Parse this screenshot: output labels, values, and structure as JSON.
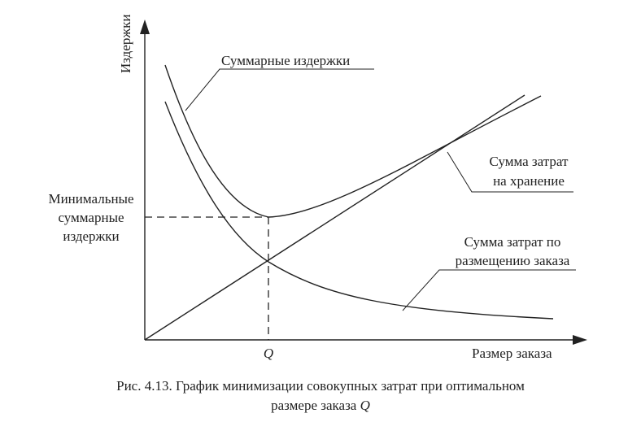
{
  "axes": {
    "y_label": "Издержки",
    "x_label": "Размер заказа",
    "x_tick": "Q"
  },
  "labels": {
    "total": "Суммарные издержки",
    "storage": [
      "Сумма затрат",
      "на хранение"
    ],
    "ordering": [
      "Сумма затрат по",
      "размещению заказа"
    ],
    "minimum": [
      "Минимальные",
      "суммарные",
      "издержки"
    ]
  },
  "caption": {
    "line1": "Рис. 4.13. График минимизации совокупных затрат при оптимальном",
    "line2": "размере заказа",
    "symbol": "Q"
  }
}
